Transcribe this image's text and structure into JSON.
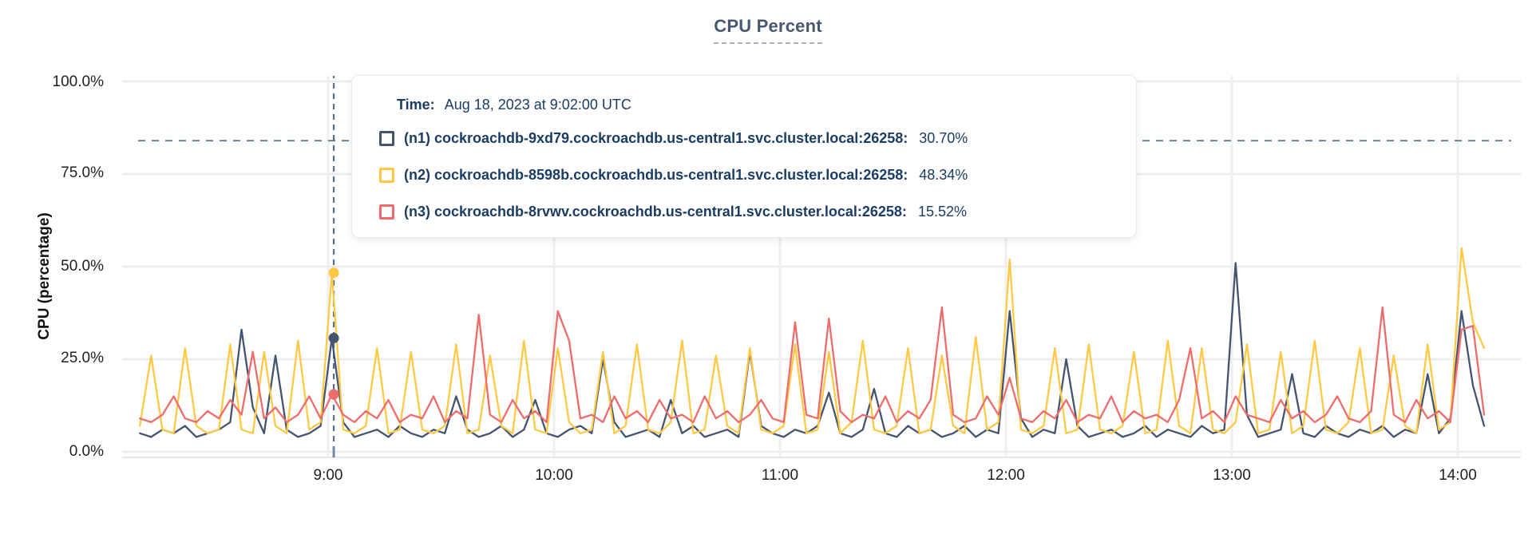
{
  "page": {
    "title": "CPU Percent"
  },
  "colors": {
    "title": "#475872",
    "tooltip_text": "#1b3c63",
    "grid_line": "#ebebeb",
    "dashed_guide": "#56708a",
    "series_n1": "#44546E",
    "series_n2": "#FFC943",
    "series_n3": "#EE6C6C"
  },
  "tooltip": {
    "time_label": "Time:"
  },
  "chart_data": {
    "type": "line",
    "title": "CPU Percent",
    "xlabel": "",
    "ylabel": "CPU (percentage)",
    "ylim": [
      0,
      100
    ],
    "grid": true,
    "yticks": [
      {
        "label": "100.0%",
        "value": 100
      },
      {
        "label": "75.0%",
        "value": 75
      },
      {
        "label": "50.0%",
        "value": 50
      },
      {
        "label": "25.0%",
        "value": 25
      },
      {
        "label": "0.0%",
        "value": 0
      }
    ],
    "xticks": [
      {
        "label": "9:00",
        "minute": 540
      },
      {
        "label": "10:00",
        "minute": 600
      },
      {
        "label": "11:00",
        "minute": 660
      },
      {
        "label": "12:00",
        "minute": 720
      },
      {
        "label": "13:00",
        "minute": 780
      },
      {
        "label": "14:00",
        "minute": 840
      }
    ],
    "x_time_range": [
      "8:10",
      "14:07"
    ],
    "x_start_minute": 490,
    "x_step_minutes": 3,
    "threshold_line_percent": 84,
    "hover": {
      "minute": 541.5,
      "time": "Aug 18, 2023 at 9:02:00 UTC",
      "values": [
        30.7,
        48.34,
        15.52
      ],
      "display": [
        "30.70%",
        "48.34%",
        "15.52%"
      ]
    },
    "series": [
      {
        "name": "(n1) cockroachdb-9xd79.cockroachdb.us-central1.svc.cluster.local:26258:",
        "color": "#44546E",
        "values": [
          5,
          4,
          6,
          5,
          7,
          4,
          5,
          6,
          8,
          33,
          12,
          5,
          26,
          6,
          4,
          5,
          7,
          30.7,
          8,
          4,
          5,
          6,
          4,
          7,
          5,
          4,
          6,
          5,
          15,
          6,
          4,
          5,
          7,
          4,
          6,
          14,
          5,
          4,
          6,
          7,
          5,
          25,
          8,
          4,
          5,
          6,
          4,
          14,
          5,
          7,
          4,
          5,
          6,
          4,
          27,
          7,
          5,
          4,
          6,
          5,
          7,
          16,
          5,
          4,
          6,
          17,
          5,
          4,
          7,
          5,
          6,
          4,
          5,
          7,
          4,
          6,
          5,
          38,
          9,
          4,
          6,
          5,
          25,
          7,
          4,
          5,
          6,
          4,
          5,
          7,
          4,
          6,
          5,
          4,
          7,
          5,
          6,
          51,
          10,
          4,
          5,
          6,
          21,
          5,
          4,
          7,
          5,
          4,
          6,
          5,
          7,
          4,
          6,
          5,
          21,
          5,
          9,
          38,
          18,
          7
        ]
      },
      {
        "name": "(n2) cockroachdb-8598b.cockroachdb.us-central1.svc.cluster.local:26258:",
        "color": "#FFC943",
        "values": [
          7,
          26,
          6,
          5,
          28,
          7,
          5,
          6,
          29,
          6,
          5,
          27,
          7,
          5,
          30,
          6,
          8,
          48.34,
          6,
          5,
          7,
          28,
          5,
          6,
          27,
          6,
          5,
          7,
          29,
          5,
          6,
          26,
          7,
          5,
          30,
          6,
          5,
          28,
          8,
          5,
          6,
          27,
          5,
          7,
          29,
          6,
          5,
          8,
          30,
          5,
          6,
          26,
          7,
          5,
          28,
          6,
          5,
          7,
          29,
          5,
          6,
          27,
          5,
          8,
          30,
          6,
          5,
          7,
          28,
          5,
          6,
          26,
          7,
          5,
          31,
          6,
          8,
          52,
          6,
          5,
          7,
          28,
          5,
          6,
          29,
          6,
          5,
          7,
          27,
          5,
          6,
          30,
          7,
          5,
          28,
          6,
          5,
          8,
          29,
          5,
          6,
          27,
          5,
          7,
          30,
          6,
          5,
          8,
          28,
          5,
          6,
          26,
          7,
          5,
          29,
          6,
          8,
          55,
          35,
          28
        ]
      },
      {
        "name": "(n3) cockroachdb-8rvwv.cockroachdb.us-central1.svc.cluster.local:26258:",
        "color": "#EE6C6C",
        "values": [
          9,
          8,
          10,
          15,
          9,
          8,
          11,
          9,
          14,
          10,
          27,
          9,
          12,
          8,
          10,
          15,
          9,
          15.52,
          10,
          8,
          11,
          9,
          14,
          8,
          10,
          9,
          15,
          8,
          11,
          9,
          37,
          10,
          8,
          14,
          9,
          11,
          8,
          38,
          30,
          9,
          10,
          8,
          15,
          9,
          11,
          8,
          14,
          9,
          10,
          8,
          15,
          9,
          11,
          8,
          10,
          14,
          9,
          8,
          35,
          10,
          9,
          36,
          11,
          8,
          10,
          9,
          15,
          8,
          11,
          9,
          14,
          39,
          10,
          8,
          9,
          15,
          10,
          20,
          9,
          8,
          11,
          9,
          14,
          8,
          10,
          9,
          15,
          8,
          11,
          9,
          10,
          8,
          14,
          28,
          9,
          11,
          8,
          15,
          10,
          9,
          8,
          14,
          9,
          11,
          8,
          10,
          15,
          9,
          8,
          11,
          39,
          10,
          8,
          14,
          9,
          11,
          8,
          33,
          34,
          10
        ]
      }
    ]
  }
}
